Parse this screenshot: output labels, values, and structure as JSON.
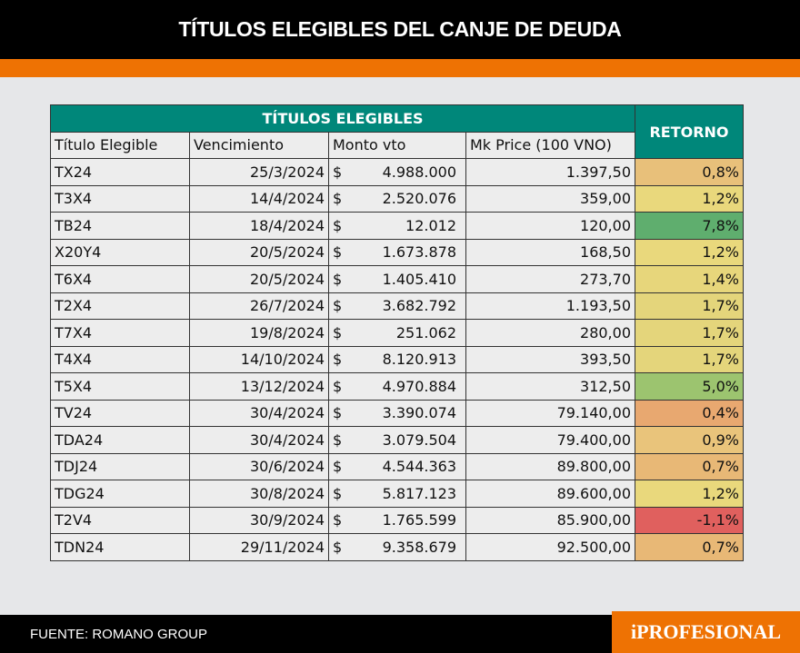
{
  "title": "TÍTULOS ELEGIBLES DEL CANJE DE DEUDA",
  "table": {
    "group_header": "TÍTULOS ELEGIBLES",
    "return_header": "RETORNO",
    "columns": [
      "Título Elegible",
      "Vencimiento",
      "Monto vto",
      "Mk Price (100 VNO)"
    ],
    "currency": "$",
    "rows": [
      [
        "TX24",
        "25/3/2024",
        "4.988.000",
        "1.397,50",
        "0,8%",
        "#e8c07a"
      ],
      [
        "T3X4",
        "14/4/2024",
        "2.520.076",
        "359,00",
        "1,2%",
        "#e9d87c"
      ],
      [
        "TB24",
        "18/4/2024",
        "12.012",
        "120,00",
        "7,8%",
        "#5fae6e"
      ],
      [
        "X20Y4",
        "20/5/2024",
        "1.673.878",
        "168,50",
        "1,2%",
        "#e9d87c"
      ],
      [
        "T6X4",
        "20/5/2024",
        "1.405.410",
        "273,70",
        "1,4%",
        "#e7d67b"
      ],
      [
        "T2X4",
        "26/7/2024",
        "3.682.792",
        "1.193,50",
        "1,7%",
        "#e4d57b"
      ],
      [
        "T7X4",
        "19/8/2024",
        "251.062",
        "280,00",
        "1,7%",
        "#e4d57b"
      ],
      [
        "T4X4",
        "14/10/2024",
        "8.120.913",
        "393,50",
        "1,7%",
        "#e4d57b"
      ],
      [
        "T5X4",
        "13/12/2024",
        "4.970.884",
        "312,50",
        "5,0%",
        "#9cc46f"
      ],
      [
        "TV24",
        "30/4/2024",
        "3.390.074",
        "79.140,00",
        "0,4%",
        "#e8a870"
      ],
      [
        "TDA24",
        "30/4/2024",
        "3.079.504",
        "79.400,00",
        "0,9%",
        "#e9c47b"
      ],
      [
        "TDJ24",
        "30/6/2024",
        "4.544.363",
        "89.800,00",
        "0,7%",
        "#e8b876"
      ],
      [
        "TDG24",
        "30/8/2024",
        "5.817.123",
        "89.600,00",
        "1,2%",
        "#e9d87c"
      ],
      [
        "T2V4",
        "30/9/2024",
        "1.765.599",
        "85.900,00",
        "-1,1%",
        "#e0605e"
      ],
      [
        "TDN24",
        "29/11/2024",
        "9.358.679",
        "92.500,00",
        "0,7%",
        "#e8b876"
      ]
    ]
  },
  "footer": {
    "source": "FUENTE: ROMANO GROUP",
    "logo": "iPROFESIONAL"
  },
  "colors": {
    "teal": "#00877a",
    "orange": "#ee7203"
  }
}
